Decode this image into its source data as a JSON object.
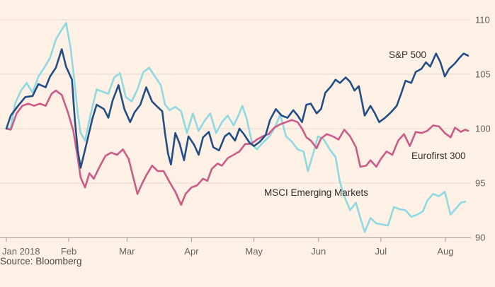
{
  "chart_data": {
    "type": "line",
    "title": "",
    "xlabel": "",
    "ylabel": "",
    "ylim": [
      90,
      110
    ],
    "yticks": [
      90,
      95,
      100,
      105,
      110
    ],
    "xlim": [
      0,
      31.7
    ],
    "x_unit": "weeks since 2 Jan 2018",
    "x_ticks": [
      {
        "label": "Jan 2018",
        "x": 0
      },
      {
        "label": "Feb",
        "x": 4.28
      },
      {
        "label": "Mar",
        "x": 8.28
      },
      {
        "label": "Apr",
        "x": 12.71
      },
      {
        "label": "May",
        "x": 17
      },
      {
        "label": "Jun",
        "x": 21.43
      },
      {
        "label": "Jul",
        "x": 25.71
      },
      {
        "label": "Aug",
        "x": 30.14
      }
    ],
    "grid": true,
    "legend": "direct labels",
    "source": "Source: Bloomberg",
    "series": [
      {
        "name": "S&P 500",
        "color": "#224e87",
        "values": [
          [
            0,
            100
          ],
          [
            0.3,
            101.2
          ],
          [
            0.8,
            102.1
          ],
          [
            1.3,
            102.9
          ],
          [
            1.8,
            103.0
          ],
          [
            2.2,
            104.1
          ],
          [
            2.7,
            103.8
          ],
          [
            3.0,
            104.8
          ],
          [
            3.4,
            105.6
          ],
          [
            3.8,
            107.3
          ],
          [
            4.1,
            105.7
          ],
          [
            4.5,
            104.5
          ],
          [
            4.7,
            100.8
          ],
          [
            4.9,
            98.0
          ],
          [
            5.1,
            96.4
          ],
          [
            5.5,
            98.6
          ],
          [
            5.9,
            100.9
          ],
          [
            6.2,
            102.2
          ],
          [
            6.7,
            101.8
          ],
          [
            7.0,
            101.0
          ],
          [
            7.3,
            102.6
          ],
          [
            7.7,
            104.0
          ],
          [
            8.1,
            101.8
          ],
          [
            8.5,
            100.6
          ],
          [
            8.8,
            101.5
          ],
          [
            9.2,
            102.2
          ],
          [
            9.6,
            103.8
          ],
          [
            10.0,
            102.5
          ],
          [
            10.3,
            102.1
          ],
          [
            10.7,
            101.6
          ],
          [
            10.9,
            99.5
          ],
          [
            11.1,
            97.7
          ],
          [
            11.3,
            96.7
          ],
          [
            11.6,
            99.6
          ],
          [
            11.9,
            98.6
          ],
          [
            12.2,
            97.1
          ],
          [
            12.5,
            99.3
          ],
          [
            12.9,
            98.5
          ],
          [
            13.2,
            97.6
          ],
          [
            13.5,
            99.2
          ],
          [
            13.9,
            99.7
          ],
          [
            14.2,
            98.3
          ],
          [
            14.6,
            98.0
          ],
          [
            15.0,
            99.3
          ],
          [
            15.3,
            99.6
          ],
          [
            15.7,
            98.9
          ],
          [
            16.0,
            100.0
          ],
          [
            16.3,
            99.5
          ],
          [
            16.7,
            98.7
          ],
          [
            17.0,
            98.4
          ],
          [
            17.4,
            98.8
          ],
          [
            17.8,
            99.4
          ],
          [
            18.1,
            100.8
          ],
          [
            18.5,
            101.8
          ],
          [
            18.9,
            101.2
          ],
          [
            19.3,
            101.0
          ],
          [
            19.7,
            101.7
          ],
          [
            20.0,
            101.2
          ],
          [
            20.3,
            100.6
          ],
          [
            20.6,
            102.2
          ],
          [
            20.9,
            102.3
          ],
          [
            21.3,
            101.4
          ],
          [
            21.6,
            101.8
          ],
          [
            21.9,
            103.3
          ],
          [
            22.3,
            103.9
          ],
          [
            22.6,
            104.5
          ],
          [
            22.9,
            104.2
          ],
          [
            23.3,
            104.7
          ],
          [
            23.6,
            104.3
          ],
          [
            23.9,
            103.5
          ],
          [
            24.2,
            103.9
          ],
          [
            24.6,
            101.2
          ],
          [
            25.0,
            102.1
          ],
          [
            25.3,
            101.4
          ],
          [
            25.6,
            100.6
          ],
          [
            26.0,
            101.0
          ],
          [
            26.4,
            101.5
          ],
          [
            26.8,
            102.1
          ],
          [
            27.1,
            103.2
          ],
          [
            27.4,
            104.4
          ],
          [
            27.8,
            104.2
          ],
          [
            28.1,
            105.2
          ],
          [
            28.5,
            105.5
          ],
          [
            28.8,
            106.1
          ],
          [
            29.1,
            105.7
          ],
          [
            29.5,
            106.9
          ],
          [
            29.8,
            106.1
          ],
          [
            30.1,
            104.8
          ],
          [
            30.4,
            105.5
          ],
          [
            30.8,
            106.0
          ],
          [
            31.1,
            106.5
          ],
          [
            31.4,
            106.9
          ],
          [
            31.7,
            106.7
          ]
        ]
      },
      {
        "name": "Eurofirst 300",
        "color": "#cc5b88",
        "values": [
          [
            0,
            100
          ],
          [
            0.3,
            99.9
          ],
          [
            0.7,
            101.4
          ],
          [
            1.1,
            102.1
          ],
          [
            1.5,
            102.3
          ],
          [
            1.9,
            102.1
          ],
          [
            2.3,
            102.3
          ],
          [
            2.7,
            102.1
          ],
          [
            3.1,
            103.2
          ],
          [
            3.4,
            103.5
          ],
          [
            3.8,
            103.1
          ],
          [
            4.2,
            101.6
          ],
          [
            4.6,
            99.8
          ],
          [
            4.9,
            97.3
          ],
          [
            5.1,
            95.5
          ],
          [
            5.4,
            94.6
          ],
          [
            5.7,
            95.9
          ],
          [
            6.0,
            95.4
          ],
          [
            6.4,
            96.5
          ],
          [
            6.8,
            97.5
          ],
          [
            7.2,
            97.8
          ],
          [
            7.6,
            97.6
          ],
          [
            8.0,
            98.1
          ],
          [
            8.4,
            97.2
          ],
          [
            8.7,
            95.6
          ],
          [
            9.0,
            94.0
          ],
          [
            9.3,
            94.9
          ],
          [
            9.6,
            95.7
          ],
          [
            10.0,
            96.6
          ],
          [
            10.4,
            96.1
          ],
          [
            10.8,
            96.1
          ],
          [
            11.2,
            95.1
          ],
          [
            11.6,
            94.2
          ],
          [
            12.0,
            93.0
          ],
          [
            12.3,
            94.0
          ],
          [
            12.7,
            94.6
          ],
          [
            13.1,
            94.8
          ],
          [
            13.5,
            95.4
          ],
          [
            13.8,
            95.2
          ],
          [
            14.1,
            96.3
          ],
          [
            14.5,
            96.8
          ],
          [
            14.8,
            96.6
          ],
          [
            15.2,
            97.3
          ],
          [
            15.6,
            97.6
          ],
          [
            16.0,
            97.9
          ],
          [
            16.4,
            98.6
          ],
          [
            16.8,
            98.6
          ],
          [
            17.2,
            99.0
          ],
          [
            17.6,
            99.3
          ],
          [
            18.0,
            99.5
          ],
          [
            18.4,
            100.1
          ],
          [
            18.8,
            100.4
          ],
          [
            19.2,
            100.6
          ],
          [
            19.6,
            100.8
          ],
          [
            20.0,
            100.6
          ],
          [
            20.3,
            100.0
          ],
          [
            20.6,
            99.2
          ],
          [
            20.9,
            98.9
          ],
          [
            21.3,
            98.2
          ],
          [
            21.6,
            99.1
          ],
          [
            22.0,
            99.5
          ],
          [
            22.4,
            99.3
          ],
          [
            22.8,
            99.0
          ],
          [
            23.2,
            99.9
          ],
          [
            23.6,
            99.3
          ],
          [
            24.0,
            98.3
          ],
          [
            24.3,
            96.5
          ],
          [
            24.7,
            96.6
          ],
          [
            25.0,
            97.1
          ],
          [
            25.4,
            96.5
          ],
          [
            25.7,
            97.2
          ],
          [
            26.1,
            97.9
          ],
          [
            26.5,
            97.6
          ],
          [
            26.9,
            98.9
          ],
          [
            27.3,
            99.5
          ],
          [
            27.7,
            98.4
          ],
          [
            28.1,
            99.7
          ],
          [
            28.5,
            99.6
          ],
          [
            28.9,
            99.8
          ],
          [
            29.3,
            100.3
          ],
          [
            29.7,
            100.2
          ],
          [
            30.1,
            99.6
          ],
          [
            30.5,
            99.2
          ],
          [
            30.8,
            100.1
          ],
          [
            31.2,
            99.7
          ],
          [
            31.5,
            99.9
          ],
          [
            31.7,
            99.8
          ]
        ]
      },
      {
        "name": "MSCI Emerging Markets",
        "color": "#8fd9e3",
        "values": [
          [
            0,
            100
          ],
          [
            0.3,
            100.1
          ],
          [
            0.6,
            102.3
          ],
          [
            1.0,
            103.5
          ],
          [
            1.4,
            104.2
          ],
          [
            1.8,
            103.3
          ],
          [
            2.2,
            104.8
          ],
          [
            2.6,
            105.6
          ],
          [
            3.0,
            106.5
          ],
          [
            3.4,
            108.2
          ],
          [
            3.8,
            109.1
          ],
          [
            4.1,
            109.7
          ],
          [
            4.4,
            107.5
          ],
          [
            4.7,
            104.0
          ],
          [
            4.9,
            101.4
          ],
          [
            5.1,
            99.6
          ],
          [
            5.4,
            98.9
          ],
          [
            5.8,
            101.4
          ],
          [
            6.2,
            103.6
          ],
          [
            6.6,
            103.4
          ],
          [
            7.0,
            103.2
          ],
          [
            7.4,
            104.7
          ],
          [
            7.8,
            105.1
          ],
          [
            8.2,
            102.9
          ],
          [
            8.6,
            102.5
          ],
          [
            9.0,
            103.6
          ],
          [
            9.4,
            105.2
          ],
          [
            9.8,
            105.6
          ],
          [
            10.2,
            104.8
          ],
          [
            10.6,
            104.0
          ],
          [
            10.9,
            102.2
          ],
          [
            11.2,
            101.7
          ],
          [
            11.6,
            102.0
          ],
          [
            12.0,
            101.6
          ],
          [
            12.4,
            99.6
          ],
          [
            12.8,
            101.4
          ],
          [
            13.2,
            99.8
          ],
          [
            13.6,
            100.7
          ],
          [
            14.0,
            101.4
          ],
          [
            14.4,
            99.6
          ],
          [
            14.8,
            100.6
          ],
          [
            15.2,
            101.2
          ],
          [
            15.6,
            100.3
          ],
          [
            15.9,
            101.1
          ],
          [
            16.2,
            102.1
          ],
          [
            16.5,
            100.9
          ],
          [
            16.9,
            98.5
          ],
          [
            17.2,
            98.1
          ],
          [
            17.6,
            98.7
          ],
          [
            18.0,
            99.2
          ],
          [
            18.4,
            100.0
          ],
          [
            18.8,
            101.3
          ],
          [
            19.2,
            99.3
          ],
          [
            19.6,
            98.8
          ],
          [
            20.0,
            98.1
          ],
          [
            20.4,
            97.9
          ],
          [
            20.7,
            96.1
          ],
          [
            21.0,
            97.4
          ],
          [
            21.4,
            99.3
          ],
          [
            21.8,
            99.0
          ],
          [
            22.2,
            98.1
          ],
          [
            22.6,
            97.4
          ],
          [
            22.9,
            95.1
          ],
          [
            23.2,
            93.8
          ],
          [
            23.6,
            92.5
          ],
          [
            24.0,
            93.2
          ],
          [
            24.3,
            91.8
          ],
          [
            24.6,
            90.5
          ],
          [
            25.0,
            91.8
          ],
          [
            25.4,
            91.3
          ],
          [
            25.8,
            91.2
          ],
          [
            26.2,
            91.1
          ],
          [
            26.6,
            92.8
          ],
          [
            27.0,
            92.6
          ],
          [
            27.4,
            92.5
          ],
          [
            27.8,
            91.9
          ],
          [
            28.2,
            92.1
          ],
          [
            28.6,
            92.4
          ],
          [
            28.9,
            93.4
          ],
          [
            29.3,
            94.0
          ],
          [
            29.7,
            93.8
          ],
          [
            30.1,
            94.2
          ],
          [
            30.5,
            92.1
          ],
          [
            30.9,
            92.7
          ],
          [
            31.2,
            93.2
          ],
          [
            31.5,
            93.3
          ]
        ]
      }
    ],
    "annotations": [
      "S&P 500",
      "Eurofirst 300",
      "MSCI Emerging Markets"
    ]
  }
}
